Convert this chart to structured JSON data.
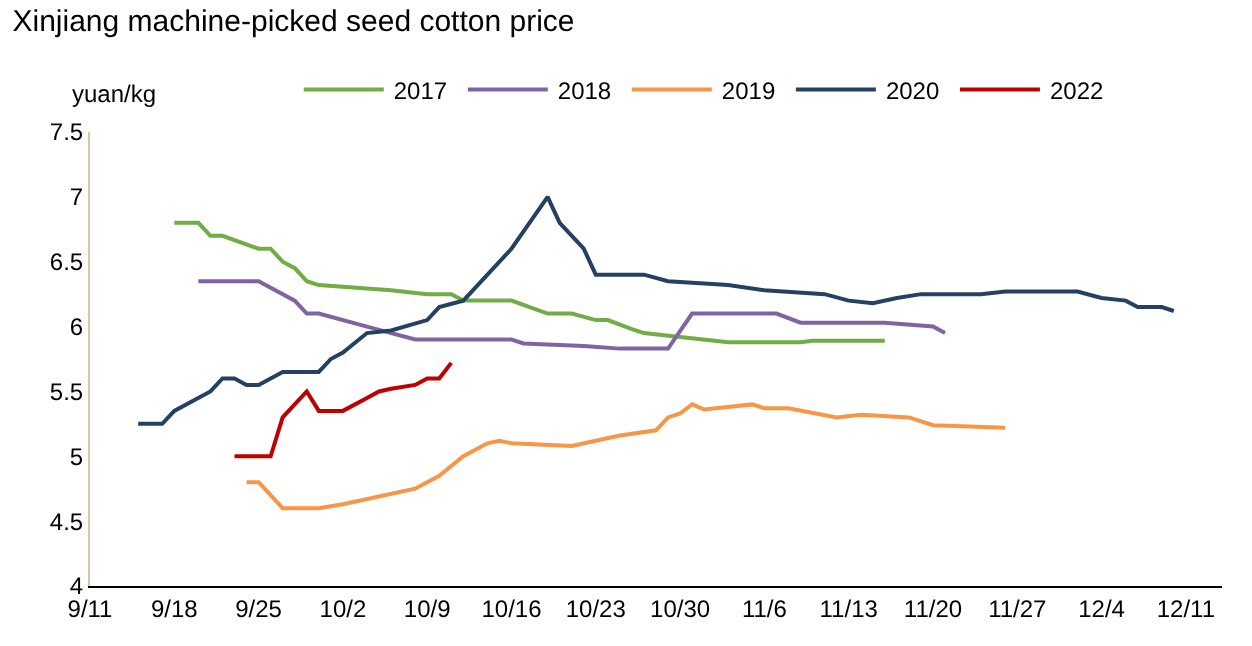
{
  "chart_data": {
    "type": "line",
    "title": "Xinjiang machine-picked seed cotton price",
    "ylabel": "yuan/kg",
    "xlim": [
      "--09-11",
      "--12-14"
    ],
    "xticks": [
      {
        "value": "--09-11",
        "label": "9/11"
      },
      {
        "value": "--09-18",
        "label": "9/18"
      },
      {
        "value": "--09-25",
        "label": "9/25"
      },
      {
        "value": "--10-02",
        "label": "10/2"
      },
      {
        "value": "--10-09",
        "label": "10/9"
      },
      {
        "value": "--10-16",
        "label": "10/16"
      },
      {
        "value": "--10-23",
        "label": "10/23"
      },
      {
        "value": "--10-30",
        "label": "10/30"
      },
      {
        "value": "--11-06",
        "label": "11/6"
      },
      {
        "value": "--11-13",
        "label": "11/13"
      },
      {
        "value": "--11-20",
        "label": "11/20"
      },
      {
        "value": "--11-27",
        "label": "11/27"
      },
      {
        "value": "--12-04",
        "label": "12/4"
      },
      {
        "value": "--12-11",
        "label": "12/11"
      }
    ],
    "ylim": [
      4,
      7.5
    ],
    "yticks": [
      4,
      4.5,
      5,
      5.5,
      6,
      6.5,
      7,
      7.5
    ],
    "legend": "top",
    "marker": "none",
    "line_style": "solid",
    "series": [
      {
        "name": "2017",
        "color": "#70ad47",
        "x": [
          "--09-18",
          "--09-20",
          "--09-21",
          "--09-22",
          "--09-25",
          "--09-26",
          "--09-27",
          "--09-28",
          "--09-29",
          "--09-30",
          "--10-06",
          "--10-09",
          "--10-11",
          "--10-12",
          "--10-16",
          "--10-19",
          "--10-21",
          "--10-23",
          "--10-24",
          "--10-26",
          "--10-27",
          "--10-30",
          "--11-03",
          "--11-09",
          "--11-10",
          "--11-16"
        ],
        "values": [
          6.8,
          6.8,
          6.7,
          6.7,
          6.6,
          6.6,
          6.5,
          6.45,
          6.35,
          6.32,
          6.28,
          6.25,
          6.25,
          6.2,
          6.2,
          6.1,
          6.1,
          6.05,
          6.05,
          5.98,
          5.95,
          5.92,
          5.88,
          5.88,
          5.89,
          5.89
        ]
      },
      {
        "name": "2018",
        "color": "#8064a2",
        "x": [
          "--09-20",
          "--09-25",
          "--09-28",
          "--09-29",
          "--09-30",
          "--10-04",
          "--10-08",
          "--10-16",
          "--10-17",
          "--10-22",
          "--10-25",
          "--10-29",
          "--10-31",
          "--11-07",
          "--11-09",
          "--11-16",
          "--11-20",
          "--11-21"
        ],
        "values": [
          6.35,
          6.35,
          6.2,
          6.1,
          6.1,
          6.0,
          5.9,
          5.9,
          5.87,
          5.85,
          5.83,
          5.83,
          6.1,
          6.1,
          6.03,
          6.03,
          6.0,
          5.95
        ]
      },
      {
        "name": "2019",
        "color": "#f79646",
        "x": [
          "--09-24",
          "--09-25",
          "--09-27",
          "--09-30",
          "--10-02",
          "--10-08",
          "--10-10",
          "--10-12",
          "--10-14",
          "--10-15",
          "--10-16",
          "--10-21",
          "--10-23",
          "--10-25",
          "--10-28",
          "--10-29",
          "--10-30",
          "--10-31",
          "--11-01",
          "--11-05",
          "--11-06",
          "--11-08",
          "--11-12",
          "--11-14",
          "--11-18",
          "--11-20",
          "--11-26"
        ],
        "values": [
          4.8,
          4.8,
          4.6,
          4.6,
          4.63,
          4.75,
          4.85,
          5.0,
          5.1,
          5.12,
          5.1,
          5.08,
          5.12,
          5.16,
          5.2,
          5.3,
          5.33,
          5.4,
          5.36,
          5.4,
          5.37,
          5.37,
          5.3,
          5.32,
          5.3,
          5.24,
          5.22
        ]
      },
      {
        "name": "2020",
        "color": "#254061",
        "x": [
          "--09-15",
          "--09-17",
          "--09-18",
          "--09-21",
          "--09-22",
          "--09-23",
          "--09-24",
          "--09-25",
          "--09-27",
          "--09-30",
          "--10-01",
          "--10-02",
          "--10-04",
          "--10-06",
          "--10-09",
          "--10-10",
          "--10-12",
          "--10-16",
          "--10-19",
          "--10-20",
          "--10-22",
          "--10-23",
          "--10-27",
          "--10-29",
          "--11-03",
          "--11-06",
          "--11-11",
          "--11-13",
          "--11-15",
          "--11-17",
          "--11-19",
          "--11-24",
          "--11-26",
          "--12-02",
          "--12-04",
          "--12-06",
          "--12-07",
          "--12-09",
          "--12-10"
        ],
        "values": [
          5.25,
          5.25,
          5.35,
          5.5,
          5.6,
          5.6,
          5.55,
          5.55,
          5.65,
          5.65,
          5.75,
          5.8,
          5.95,
          5.97,
          6.05,
          6.15,
          6.2,
          6.6,
          7.0,
          6.8,
          6.6,
          6.4,
          6.4,
          6.35,
          6.32,
          6.28,
          6.25,
          6.2,
          6.18,
          6.22,
          6.25,
          6.25,
          6.27,
          6.27,
          6.22,
          6.2,
          6.15,
          6.15,
          6.12
        ]
      },
      {
        "name": "2022",
        "color": "#c00000",
        "x": [
          "--09-23",
          "--09-26",
          "--09-27",
          "--09-28",
          "--09-29",
          "--09-30",
          "--10-02",
          "--10-04",
          "--10-05",
          "--10-06",
          "--10-08",
          "--10-09",
          "--10-10",
          "--10-11"
        ],
        "values": [
          5.0,
          5.0,
          5.3,
          5.4,
          5.5,
          5.35,
          5.35,
          5.45,
          5.5,
          5.52,
          5.55,
          5.6,
          5.6,
          5.72
        ]
      }
    ]
  }
}
